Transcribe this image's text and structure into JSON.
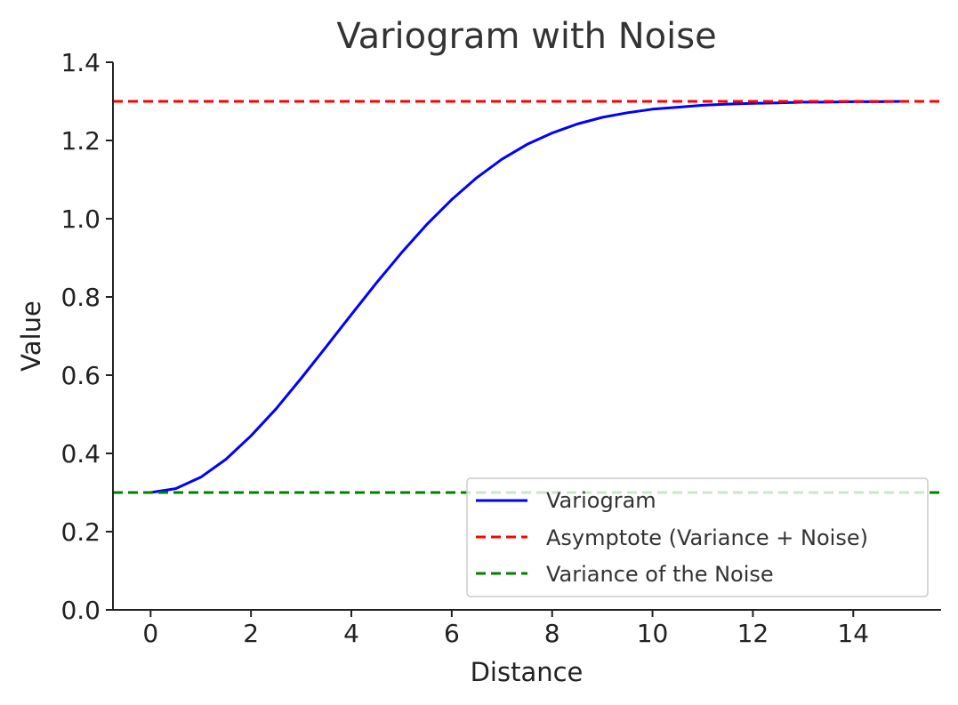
{
  "chart_data": {
    "type": "line",
    "title": "Variogram with Noise",
    "xlabel": "Distance",
    "ylabel": "Value",
    "xlim": [
      -0.75,
      15.75
    ],
    "ylim": [
      0.0,
      1.4
    ],
    "xticks": [
      0,
      2,
      4,
      6,
      8,
      10,
      12,
      14
    ],
    "yticks": [
      0.0,
      0.2,
      0.4,
      0.6,
      0.8,
      1.0,
      1.2,
      1.4
    ],
    "xtick_labels": [
      "0",
      "2",
      "4",
      "6",
      "8",
      "10",
      "12",
      "14"
    ],
    "ytick_labels": [
      "0.0",
      "0.2",
      "0.4",
      "0.6",
      "0.8",
      "1.0",
      "1.2",
      "1.4"
    ],
    "grid": false,
    "legend_position": "lower-right",
    "series": [
      {
        "name": "Variogram",
        "color": "#0000ff",
        "style": "solid",
        "x": [
          0,
          0.5,
          1,
          1.5,
          2,
          2.5,
          3,
          3.5,
          4,
          4.5,
          5,
          5.5,
          6,
          6.5,
          7,
          7.5,
          8,
          8.5,
          9,
          9.5,
          10,
          10.5,
          11,
          11.5,
          12,
          12.5,
          13,
          13.5,
          14,
          14.5,
          15
        ],
        "y": [
          0.3,
          0.31,
          0.339,
          0.385,
          0.445,
          0.514,
          0.592,
          0.673,
          0.755,
          0.836,
          0.913,
          0.985,
          1.049,
          1.105,
          1.152,
          1.19,
          1.219,
          1.242,
          1.259,
          1.271,
          1.28,
          1.285,
          1.29,
          1.293,
          1.295,
          1.296,
          1.298,
          1.298,
          1.299,
          1.299,
          1.3
        ]
      },
      {
        "name": "Asymptote (Variance + Noise)",
        "color": "#ff0000",
        "style": "dashed",
        "value": 1.3
      },
      {
        "name": "Variance of the Noise",
        "color": "#008000",
        "style": "dashed",
        "value": 0.3
      }
    ]
  }
}
